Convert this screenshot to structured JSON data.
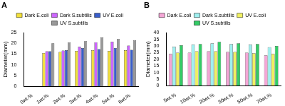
{
  "chart_data": [
    {
      "type": "bar",
      "title": "A",
      "y_label": "Diameter(mm)",
      "categories": [
        "0wt.%",
        "1wt.%",
        "2wt.%",
        "3wt.%",
        "4wt.%",
        "5wt.%",
        "6wt.%"
      ],
      "series": [
        {
          "name": "Dark E.coli",
          "color": "#f3e03a",
          "values": [
            0,
            15.5,
            16,
            16.5,
            16.8,
            16.5,
            16.8
          ]
        },
        {
          "name": "Dark S.subtilis",
          "color": "#cc66ff",
          "values": [
            0,
            16.3,
            16.7,
            18.5,
            20.5,
            20.8,
            19
          ]
        },
        {
          "name": "UV E.coli",
          "color": "#3a5fcd",
          "values": [
            0,
            16.3,
            16.8,
            17.8,
            17.3,
            17.8,
            17
          ]
        },
        {
          "name": "UV S.subtilis",
          "color": "#999999",
          "values": [
            0,
            20,
            20.5,
            21,
            22.8,
            22,
            21.5
          ]
        }
      ],
      "ylim": [
        0,
        25
      ],
      "yticks": [
        0,
        5,
        10,
        15,
        20,
        25
      ],
      "grid": false,
      "legend": "top"
    },
    {
      "type": "bar",
      "title": "B",
      "y_label": "Diameter(mm)",
      "categories": [
        "5wt.%",
        "10wt.%",
        "20wt.%",
        "30wt.%",
        "50wt.%",
        "70wt.%"
      ],
      "series": [
        {
          "name": "Dark E.coli",
          "color": "#f4a6d6",
          "values": [
            24,
            25,
            26,
            25.5,
            25,
            23
          ]
        },
        {
          "name": "Dark S.subtilis",
          "color": "#9ff0f0",
          "values": [
            29.5,
            31,
            32,
            31.5,
            31,
            29
          ]
        },
        {
          "name": "UV E.coli",
          "color": "#f0f060",
          "values": [
            25,
            26,
            26,
            25.5,
            24.5,
            24
          ]
        },
        {
          "name": "UV S.subtilis",
          "color": "#33cc66",
          "values": [
            30.5,
            31.5,
            33,
            32,
            31.5,
            30
          ]
        }
      ],
      "ylim": [
        0,
        40
      ],
      "yticks": [
        0,
        5,
        10,
        15,
        20,
        25,
        30,
        35,
        40
      ],
      "grid": false,
      "legend": "top"
    }
  ]
}
